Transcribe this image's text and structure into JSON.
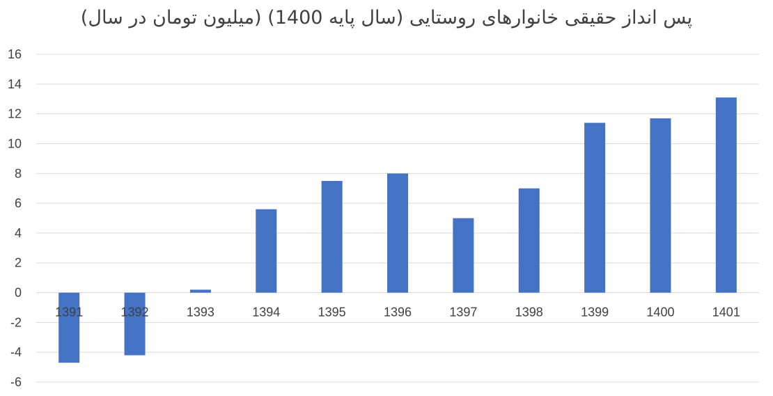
{
  "chart_data": {
    "type": "bar",
    "title": "پس انداز حقیقی خانوارهای روستایی (سال پایه 1400) (میلیون تومان در سال)",
    "categories": [
      "1391",
      "1392",
      "1393",
      "1394",
      "1395",
      "1396",
      "1397",
      "1398",
      "1399",
      "1400",
      "1401"
    ],
    "series": [
      {
        "values": [
          -4.7,
          -4.2,
          0.2,
          5.6,
          7.5,
          8.0,
          5.0,
          7.0,
          11.4,
          11.7,
          13.1
        ],
        "color": "#4472C4"
      }
    ],
    "ylim": [
      -6,
      16
    ],
    "yticks": [
      "-6",
      "-4",
      "-2",
      "0",
      "2",
      "4",
      "6",
      "8",
      "10",
      "12",
      "14",
      "16"
    ],
    "grid": true,
    "legend": "none",
    "xlabel": "",
    "ylabel": ""
  }
}
